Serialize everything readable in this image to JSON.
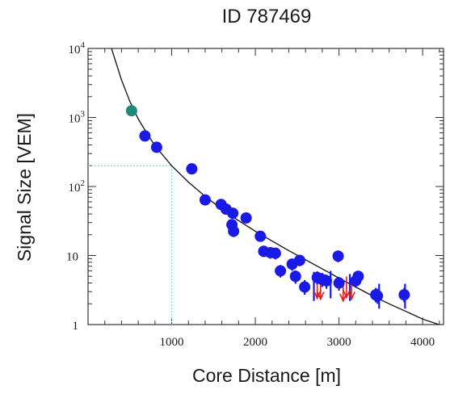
{
  "chart_data": {
    "type": "scatter",
    "title": "ID 787469",
    "xlabel": "Core Distance [m]",
    "ylabel": "Signal Size [VEM]",
    "xlim": [
      0,
      4250
    ],
    "ylim": [
      1,
      10000
    ],
    "y_scale": "log",
    "grid": false,
    "x_ticks": [
      {
        "value": 1000,
        "label": "1000"
      },
      {
        "value": 2000,
        "label": "2000"
      },
      {
        "value": 3000,
        "label": "3000"
      },
      {
        "value": 4000,
        "label": "4000"
      }
    ],
    "y_ticks": [
      {
        "value": 1,
        "base": "1",
        "exp": ""
      },
      {
        "value": 10,
        "base": "10",
        "exp": ""
      },
      {
        "value": 100,
        "base": "10",
        "exp": "2"
      },
      {
        "value": 1000,
        "base": "10",
        "exp": "3"
      },
      {
        "value": 10000,
        "base": "10",
        "exp": "4"
      }
    ],
    "colors": {
      "stations": "#1a1ae6",
      "highlighted_station": "#1f8a7a",
      "upper_limits": "#e02020",
      "fit_line": "#111111",
      "reference_line": "#7fd8d8",
      "axes": "#333333"
    },
    "reference_point": {
      "x": 1000,
      "y": 200
    },
    "fit_curve": [
      {
        "x": 280,
        "y": 10000
      },
      {
        "x": 400,
        "y": 3500
      },
      {
        "x": 500,
        "y": 1700
      },
      {
        "x": 600,
        "y": 950
      },
      {
        "x": 700,
        "y": 600
      },
      {
        "x": 800,
        "y": 390
      },
      {
        "x": 1000,
        "y": 200
      },
      {
        "x": 1200,
        "y": 116
      },
      {
        "x": 1400,
        "y": 72
      },
      {
        "x": 1600,
        "y": 47
      },
      {
        "x": 1800,
        "y": 32
      },
      {
        "x": 2000,
        "y": 22.5
      },
      {
        "x": 2200,
        "y": 16.2
      },
      {
        "x": 2400,
        "y": 11.8
      },
      {
        "x": 2600,
        "y": 8.7
      },
      {
        "x": 2800,
        "y": 6.4
      },
      {
        "x": 3000,
        "y": 4.7
      },
      {
        "x": 3200,
        "y": 3.5
      },
      {
        "x": 3400,
        "y": 2.6
      },
      {
        "x": 3600,
        "y": 2.0
      },
      {
        "x": 3800,
        "y": 1.55
      },
      {
        "x": 4000,
        "y": 1.2
      },
      {
        "x": 4250,
        "y": 0.95
      }
    ],
    "highlighted_station": {
      "x": 520,
      "y": 1250
    },
    "stations": [
      {
        "x": 680,
        "y": 540,
        "err_lo": 460,
        "err_hi": 630
      },
      {
        "x": 820,
        "y": 370,
        "err_lo": 310,
        "err_hi": 440
      },
      {
        "x": 1240,
        "y": 180,
        "err_lo": 160,
        "err_hi": 200
      },
      {
        "x": 1400,
        "y": 64,
        "err_lo": 56,
        "err_hi": 72
      },
      {
        "x": 1590,
        "y": 55,
        "err_lo": 47,
        "err_hi": 63
      },
      {
        "x": 1650,
        "y": 47,
        "err_lo": 40,
        "err_hi": 54
      },
      {
        "x": 1730,
        "y": 41,
        "err_lo": 34,
        "err_hi": 48
      },
      {
        "x": 1720,
        "y": 28,
        "err_lo": 23,
        "err_hi": 33
      },
      {
        "x": 1740,
        "y": 22.5,
        "err_lo": 18.5,
        "err_hi": 27
      },
      {
        "x": 1890,
        "y": 35,
        "err_lo": 30,
        "err_hi": 40
      },
      {
        "x": 2060,
        "y": 19,
        "err_lo": 16,
        "err_hi": 22
      },
      {
        "x": 2100,
        "y": 11.5,
        "err_lo": 9.5,
        "err_hi": 13.5
      },
      {
        "x": 2180,
        "y": 11,
        "err_lo": 9,
        "err_hi": 13
      },
      {
        "x": 2240,
        "y": 10.8,
        "err_lo": 8.8,
        "err_hi": 12.8
      },
      {
        "x": 2300,
        "y": 6,
        "err_lo": 4.8,
        "err_hi": 7.3
      },
      {
        "x": 2440,
        "y": 7.5,
        "err_lo": 6,
        "err_hi": 9
      },
      {
        "x": 2480,
        "y": 5,
        "err_lo": 3.9,
        "err_hi": 6.1
      },
      {
        "x": 2530,
        "y": 8.5,
        "err_lo": 7,
        "err_hi": 10
      },
      {
        "x": 2590,
        "y": 3.5,
        "err_lo": 2.7,
        "err_hi": 4.4
      },
      {
        "x": 2740,
        "y": 4.8,
        "err_lo": 3.8,
        "err_hi": 5.9
      },
      {
        "x": 2800,
        "y": 4.5,
        "err_lo": 3.5,
        "err_hi": 5.6
      },
      {
        "x": 2850,
        "y": 4.3,
        "err_lo": 3.3,
        "err_hi": 5.3
      },
      {
        "x": 2990,
        "y": 9.8,
        "err_lo": 8,
        "err_hi": 11.8
      },
      {
        "x": 3000,
        "y": 4,
        "err_lo": 3.1,
        "err_hi": 4.9
      },
      {
        "x": 3200,
        "y": 4.3,
        "err_lo": 3.4,
        "err_hi": 5.2
      },
      {
        "x": 3230,
        "y": 5,
        "err_lo": 4,
        "err_hi": 6
      },
      {
        "x": 3440,
        "y": 2.7,
        "err_lo": 2.1,
        "err_hi": 3.4
      },
      {
        "x": 3460,
        "y": 2.6,
        "err_lo": 2.0,
        "err_hi": 3.3
      },
      {
        "x": 3780,
        "y": 2.7,
        "err_lo": 2.1,
        "err_hi": 3.4
      }
    ],
    "error_bars_only": [
      {
        "x": 2700,
        "y_lo": 2.2,
        "y_hi": 5.8
      },
      {
        "x": 2900,
        "y_lo": 2.4,
        "y_hi": 6.0
      },
      {
        "x": 3130,
        "y_lo": 2.2,
        "y_hi": 5.4
      },
      {
        "x": 3480,
        "y_lo": 1.7,
        "y_hi": 3.9
      },
      {
        "x": 3790,
        "y_lo": 1.7,
        "y_hi": 3.9
      }
    ],
    "upper_limits": [
      {
        "x": 2740,
        "y": 3.5
      },
      {
        "x": 2780,
        "y": 3.4
      },
      {
        "x": 3050,
        "y": 3.2
      },
      {
        "x": 3090,
        "y": 3.6
      },
      {
        "x": 3150,
        "y": 3.4
      }
    ]
  }
}
